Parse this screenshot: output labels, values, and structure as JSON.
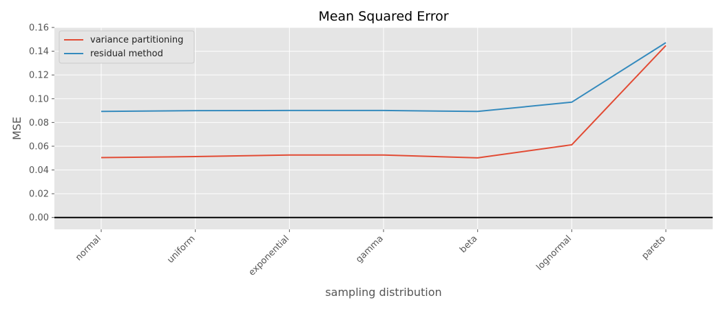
{
  "chart_data": {
    "type": "line",
    "title": "Mean Squared Error",
    "xlabel": "sampling distribution",
    "ylabel": "MSE",
    "categories": [
      "normal",
      "uniform",
      "exponential",
      "gamma",
      "beta",
      "lognormal",
      "pareto"
    ],
    "ylim": [
      -0.01,
      0.16
    ],
    "yticks": [
      0.0,
      0.02,
      0.04,
      0.06,
      0.08,
      0.1,
      0.12,
      0.14,
      0.16
    ],
    "ytick_labels": [
      "0.00",
      "0.02",
      "0.04",
      "0.06",
      "0.08",
      "0.10",
      "0.12",
      "0.14",
      "0.16"
    ],
    "grid": true,
    "legend_position": "top-left",
    "reference_line_y": 0.0,
    "series": [
      {
        "name": "variance partitioning",
        "color": "#E24A33",
        "values": [
          0.0504,
          0.0513,
          0.0526,
          0.0526,
          0.0502,
          0.0612,
          0.1448
        ]
      },
      {
        "name": "residual method",
        "color": "#348ABD",
        "values": [
          0.0893,
          0.09,
          0.0901,
          0.0901,
          0.0893,
          0.0971,
          0.1472
        ]
      }
    ]
  }
}
